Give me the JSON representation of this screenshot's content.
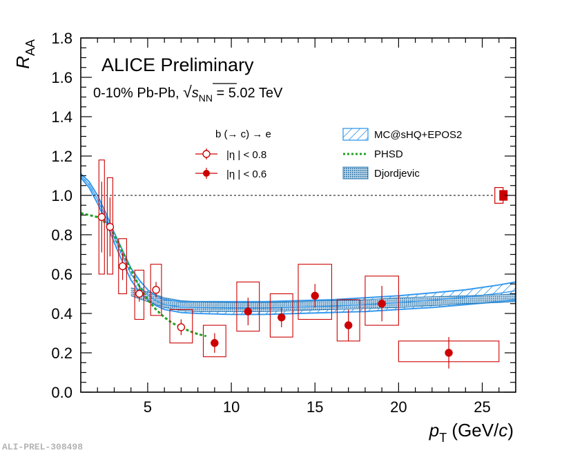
{
  "chart_data": {
    "type": "scatter",
    "title": "ALICE Preliminary",
    "system_prefix": "0-10% Pb-Pb, ",
    "sqrt_symbol": "√",
    "s_label": "s",
    "nn_subscript": "NN",
    "energy_suffix": " = 5.02 TeV",
    "xlabel_main": "p",
    "xlabel_sub": "T",
    "xlabel_units_pre": " (GeV/",
    "xlabel_units_var": "c",
    "xlabel_units_post": ")",
    "ylabel_main": "R",
    "ylabel_sub": "AA",
    "xlim": [
      1,
      27
    ],
    "ylim": [
      0.0,
      1.8
    ],
    "xticks": [
      "5",
      "10",
      "15",
      "20",
      "25"
    ],
    "yticks": [
      "0.0",
      "0.2",
      "0.4",
      "0.6",
      "0.8",
      "1.0",
      "1.2",
      "1.4",
      "1.6",
      "1.8"
    ],
    "reference_line": 1.0,
    "legend": {
      "header": "b (→ c) → e",
      "open_label": "|η | < 0.8",
      "filled_label": "|η | < 0.6",
      "mc_label": "MC@sHQ+EPOS2",
      "phsd_label": "PHSD",
      "djord_label": "Djordjevic"
    },
    "series": [
      {
        "name": "|η| < 0.8",
        "marker": "open-circle",
        "color": "#cc0000",
        "points": [
          {
            "x": 2.25,
            "y": 0.89,
            "err": 0.18,
            "sys_lo": 0.6,
            "sys_hi": 1.18,
            "bw": 0.33
          },
          {
            "x": 2.75,
            "y": 0.84,
            "err": 0.15,
            "sys_lo": 0.6,
            "sys_hi": 1.09,
            "bw": 0.33
          },
          {
            "x": 3.5,
            "y": 0.64,
            "err": 0.07,
            "sys_lo": 0.5,
            "sys_hi": 0.78,
            "bw": 0.48
          },
          {
            "x": 4.5,
            "y": 0.5,
            "err": 0.04,
            "sys_lo": 0.37,
            "sys_hi": 0.62,
            "bw": 0.55
          },
          {
            "x": 5.5,
            "y": 0.52,
            "err": 0.04,
            "sys_lo": 0.39,
            "sys_hi": 0.65,
            "bw": 0.65
          },
          {
            "x": 7.0,
            "y": 0.33,
            "err": 0.04,
            "sys_lo": 0.25,
            "sys_hi": 0.42,
            "bw": 1.35
          }
        ]
      },
      {
        "name": "|η| < 0.6",
        "marker": "filled-circle",
        "color": "#cc0000",
        "points": [
          {
            "x": 9.0,
            "y": 0.25,
            "err": 0.05,
            "sys_lo": 0.18,
            "sys_hi": 0.34,
            "bw": 1.35
          },
          {
            "x": 11.0,
            "y": 0.41,
            "err": 0.07,
            "sys_lo": 0.31,
            "sys_hi": 0.56,
            "bw": 1.35
          },
          {
            "x": 13.0,
            "y": 0.38,
            "err": 0.05,
            "sys_lo": 0.28,
            "sys_hi": 0.5,
            "bw": 1.35
          },
          {
            "x": 15.0,
            "y": 0.49,
            "err": 0.06,
            "sys_lo": 0.37,
            "sys_hi": 0.65,
            "bw": 2.0
          },
          {
            "x": 17.0,
            "y": 0.34,
            "err": 0.08,
            "sys_lo": 0.26,
            "sys_hi": 0.47,
            "bw": 1.35
          },
          {
            "x": 19.0,
            "y": 0.45,
            "err": 0.09,
            "sys_lo": 0.34,
            "sys_hi": 0.59,
            "bw": 2.0
          },
          {
            "x": 23.0,
            "y": 0.2,
            "err": 0.08,
            "sys_lo": 0.155,
            "sys_hi": 0.26,
            "bw": 6.0
          }
        ]
      }
    ],
    "models": {
      "mc_upper": [
        [
          1,
          1.11
        ],
        [
          1.5,
          1.07
        ],
        [
          2,
          1.0
        ],
        [
          2.5,
          0.91
        ],
        [
          3,
          0.81
        ],
        [
          3.5,
          0.72
        ],
        [
          4,
          0.63
        ],
        [
          4.5,
          0.57
        ],
        [
          5,
          0.52
        ],
        [
          5.5,
          0.49
        ],
        [
          6,
          0.47
        ],
        [
          7,
          0.46
        ],
        [
          8,
          0.46
        ],
        [
          10,
          0.46
        ],
        [
          12,
          0.46
        ],
        [
          14,
          0.465
        ],
        [
          16,
          0.47
        ],
        [
          18,
          0.48
        ],
        [
          20,
          0.49
        ],
        [
          22,
          0.505
        ],
        [
          24,
          0.52
        ],
        [
          26,
          0.545
        ],
        [
          27,
          0.56
        ]
      ],
      "mc_lower": [
        [
          1,
          1.09
        ],
        [
          1.5,
          1.04
        ],
        [
          2,
          0.96
        ],
        [
          2.5,
          0.87
        ],
        [
          3,
          0.76
        ],
        [
          3.5,
          0.66
        ],
        [
          4,
          0.57
        ],
        [
          4.5,
          0.51
        ],
        [
          5,
          0.47
        ],
        [
          5.5,
          0.44
        ],
        [
          6,
          0.42
        ],
        [
          7,
          0.405
        ],
        [
          8,
          0.4
        ],
        [
          10,
          0.395
        ],
        [
          12,
          0.395
        ],
        [
          14,
          0.4
        ],
        [
          16,
          0.405
        ],
        [
          18,
          0.41
        ],
        [
          20,
          0.42
        ],
        [
          22,
          0.43
        ],
        [
          24,
          0.445
        ],
        [
          26,
          0.46
        ],
        [
          27,
          0.47
        ]
      ],
      "djord_upper": [
        [
          4,
          0.53
        ],
        [
          5,
          0.51
        ],
        [
          6,
          0.48
        ],
        [
          7,
          0.465
        ],
        [
          8,
          0.46
        ],
        [
          10,
          0.455
        ],
        [
          12,
          0.455
        ],
        [
          14,
          0.46
        ],
        [
          16,
          0.465
        ],
        [
          18,
          0.47
        ],
        [
          20,
          0.48
        ],
        [
          22,
          0.485
        ],
        [
          24,
          0.49
        ],
        [
          26,
          0.495
        ],
        [
          27,
          0.5
        ]
      ],
      "djord_lower": [
        [
          4,
          0.49
        ],
        [
          5,
          0.46
        ],
        [
          6,
          0.43
        ],
        [
          7,
          0.415
        ],
        [
          8,
          0.41
        ],
        [
          10,
          0.41
        ],
        [
          12,
          0.41
        ],
        [
          14,
          0.415
        ],
        [
          16,
          0.42
        ],
        [
          18,
          0.425
        ],
        [
          20,
          0.43
        ],
        [
          22,
          0.44
        ],
        [
          24,
          0.45
        ],
        [
          26,
          0.455
        ],
        [
          27,
          0.46
        ]
      ],
      "phsd": [
        [
          1,
          0.91
        ],
        [
          1.5,
          0.9
        ],
        [
          2,
          0.89
        ],
        [
          2.5,
          0.86
        ],
        [
          3,
          0.8
        ],
        [
          3.5,
          0.71
        ],
        [
          4,
          0.62
        ],
        [
          4.5,
          0.54
        ],
        [
          5,
          0.47
        ],
        [
          5.5,
          0.42
        ],
        [
          6,
          0.38
        ],
        [
          6.5,
          0.35
        ],
        [
          7,
          0.33
        ],
        [
          7.5,
          0.31
        ],
        [
          8,
          0.295
        ],
        [
          8.5,
          0.285
        ]
      ]
    },
    "norm_boxes": {
      "x": 26.0,
      "open_lo": 0.96,
      "open_hi": 1.04,
      "filled_lo": 0.975,
      "filled_hi": 1.025
    },
    "colors": {
      "data": "#cc0000",
      "mc": "#3399ee",
      "djord": "#2f7fb8",
      "phsd": "#22a022"
    }
  },
  "watermark": "ALI-PREL-308498"
}
